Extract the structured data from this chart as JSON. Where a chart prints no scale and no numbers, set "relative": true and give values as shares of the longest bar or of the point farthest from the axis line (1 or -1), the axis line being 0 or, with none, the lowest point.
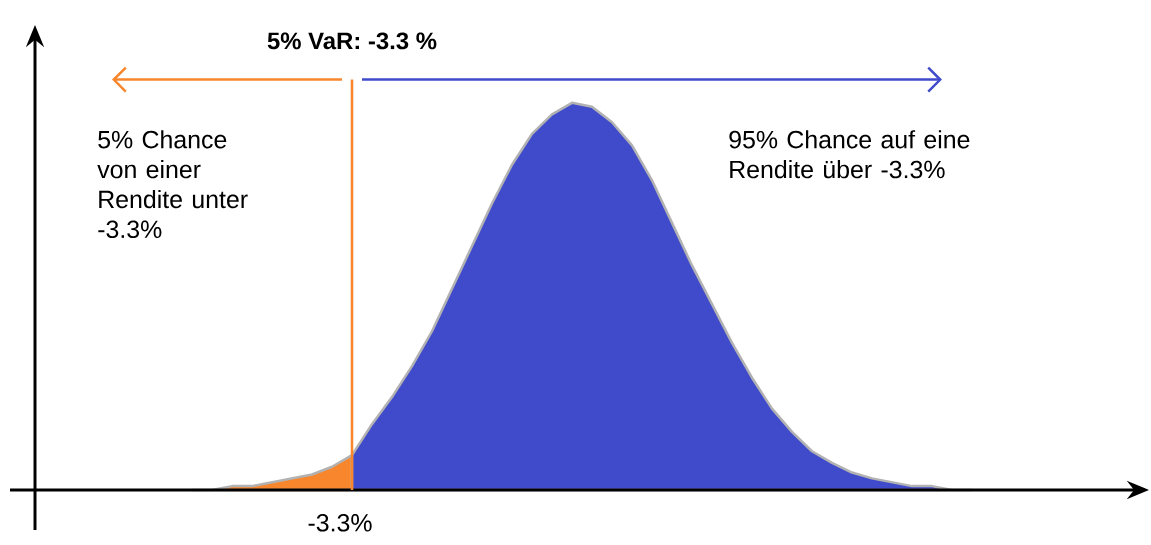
{
  "chart_data": {
    "type": "area",
    "relative": true,
    "title": "5% VaR: -3.3 %",
    "categories": [
      null,
      null,
      null,
      null,
      null,
      null,
      null,
      null,
      null,
      null,
      null,
      null,
      null,
      null,
      null,
      null,
      null,
      null,
      null,
      null,
      null,
      null,
      null,
      null,
      null,
      null,
      null,
      null,
      null,
      null,
      null,
      null,
      null,
      null,
      null,
      null,
      null,
      null,
      null,
      null
    ],
    "series": [
      {
        "color": "#f7862d",
        "values": [
          0.0,
          0.0,
          0.01,
          0.01,
          0.02,
          0.03,
          0.04,
          0.06,
          0.09,
          null,
          null,
          null,
          null,
          null,
          null,
          null,
          null,
          null,
          null,
          null,
          null,
          null,
          null,
          null,
          null,
          null,
          null,
          null,
          null,
          null,
          null,
          null,
          null,
          null,
          null,
          null,
          null,
          null,
          null,
          null
        ]
      },
      {
        "color": "#3f4bcb",
        "values": [
          null,
          null,
          null,
          null,
          null,
          null,
          null,
          null,
          0.09,
          0.17,
          0.24,
          0.32,
          0.41,
          0.52,
          0.63,
          0.74,
          0.84,
          0.92,
          0.97,
          1.0,
          0.99,
          0.95,
          0.89,
          0.8,
          0.69,
          0.58,
          0.48,
          0.38,
          0.29,
          0.21,
          0.15,
          0.1,
          0.07,
          0.045,
          0.03,
          0.02,
          0.01,
          0.01,
          0.0,
          0.0
        ]
      }
    ],
    "annotations": [
      "5% Chance von einer Rendite unter -3.3%",
      "95% Chance auf eine Rendite über -3.3%",
      "-3.3%"
    ]
  }
}
